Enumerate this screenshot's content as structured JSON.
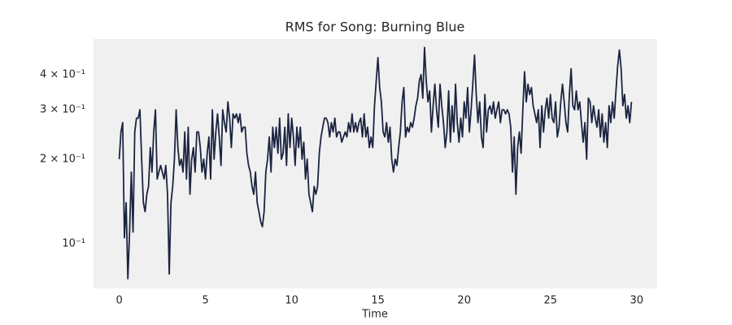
{
  "chart_data": {
    "type": "line",
    "title": "RMS for Song: Burning Blue",
    "x_label": "Time",
    "yscale": "log",
    "grid": false,
    "color": "#1b2440",
    "xlim": [
      -1.49,
      31.19
    ],
    "ylim": [
      0.0693,
      0.536
    ],
    "xticks": [
      0,
      5,
      10,
      15,
      20,
      25,
      30
    ],
    "yticks": [
      {
        "value": 0.1,
        "label": "10⁻¹"
      },
      {
        "value": 0.2,
        "label": "2 × 10⁻¹"
      },
      {
        "value": 0.3,
        "label": "3 × 10⁻¹"
      },
      {
        "value": 0.4,
        "label": "4 × 10⁻¹"
      }
    ],
    "x": [
      0,
      0.1,
      0.2,
      0.3,
      0.4,
      0.5,
      0.6,
      0.7,
      0.8,
      0.9,
      1,
      1.1,
      1.2,
      1.3,
      1.4,
      1.5,
      1.6,
      1.7,
      1.8,
      1.9,
      2,
      2.1,
      2.2,
      2.3,
      2.4,
      2.5,
      2.6,
      2.7,
      2.8,
      2.9,
      3,
      3.1,
      3.2,
      3.3,
      3.4,
      3.5,
      3.6,
      3.7,
      3.8,
      3.9,
      4,
      4.1,
      4.2,
      4.3,
      4.4,
      4.5,
      4.6,
      4.7,
      4.8,
      4.9,
      5,
      5.1,
      5.2,
      5.3,
      5.4,
      5.5,
      5.6,
      5.7,
      5.8,
      5.9,
      6,
      6.1,
      6.2,
      6.3,
      6.4,
      6.5,
      6.6,
      6.7,
      6.8,
      6.9,
      7,
      7.1,
      7.2,
      7.3,
      7.4,
      7.5,
      7.6,
      7.7,
      7.8,
      7.9,
      8,
      8.1,
      8.2,
      8.3,
      8.4,
      8.5,
      8.6,
      8.7,
      8.8,
      8.9,
      9,
      9.1,
      9.2,
      9.3,
      9.4,
      9.5,
      9.6,
      9.7,
      9.8,
      9.9,
      10,
      10.1,
      10.2,
      10.3,
      10.4,
      10.5,
      10.6,
      10.7,
      10.8,
      10.9,
      11,
      11.1,
      11.2,
      11.3,
      11.4,
      11.5,
      11.6,
      11.7,
      11.8,
      11.9,
      12,
      12.1,
      12.2,
      12.3,
      12.4,
      12.5,
      12.6,
      12.7,
      12.8,
      12.9,
      13,
      13.1,
      13.2,
      13.3,
      13.4,
      13.5,
      13.6,
      13.7,
      13.8,
      13.9,
      14,
      14.1,
      14.2,
      14.3,
      14.4,
      14.5,
      14.6,
      14.7,
      14.8,
      14.9,
      15,
      15.1,
      15.2,
      15.3,
      15.4,
      15.5,
      15.6,
      15.7,
      15.8,
      15.9,
      16,
      16.1,
      16.2,
      16.3,
      16.4,
      16.5,
      16.6,
      16.7,
      16.8,
      16.9,
      17,
      17.1,
      17.2,
      17.3,
      17.4,
      17.5,
      17.6,
      17.7,
      17.8,
      17.9,
      18,
      18.1,
      18.2,
      18.3,
      18.4,
      18.5,
      18.6,
      18.7,
      18.8,
      18.9,
      19,
      19.1,
      19.2,
      19.3,
      19.4,
      19.5,
      19.6,
      19.7,
      19.8,
      19.9,
      20,
      20.1,
      20.2,
      20.3,
      20.4,
      20.5,
      20.6,
      20.7,
      20.8,
      20.9,
      21,
      21.1,
      21.2,
      21.3,
      21.4,
      21.5,
      21.6,
      21.7,
      21.8,
      21.9,
      22,
      22.1,
      22.2,
      22.3,
      22.4,
      22.5,
      22.6,
      22.7,
      22.8,
      22.9,
      23,
      23.1,
      23.2,
      23.3,
      23.4,
      23.5,
      23.6,
      23.7,
      23.8,
      23.9,
      24,
      24.1,
      24.2,
      24.3,
      24.4,
      24.5,
      24.6,
      24.7,
      24.8,
      24.9,
      25,
      25.1,
      25.2,
      25.3,
      25.4,
      25.5,
      25.6,
      25.7,
      25.8,
      25.9,
      26,
      26.1,
      26.2,
      26.3,
      26.4,
      26.5,
      26.6,
      26.7,
      26.8,
      26.9,
      27,
      27.1,
      27.2,
      27.3,
      27.4,
      27.5,
      27.6,
      27.7,
      27.8,
      27.9,
      28,
      28.1,
      28.2,
      28.3,
      28.4,
      28.5,
      28.6,
      28.7,
      28.8,
      28.9,
      29,
      29.1,
      29.2,
      29.3,
      29.4,
      29.5,
      29.6,
      29.7
    ],
    "values": [
      0.2,
      0.25,
      0.27,
      0.105,
      0.14,
      0.075,
      0.11,
      0.18,
      0.11,
      0.25,
      0.28,
      0.28,
      0.3,
      0.2,
      0.14,
      0.13,
      0.15,
      0.16,
      0.22,
      0.18,
      0.25,
      0.3,
      0.17,
      0.18,
      0.19,
      0.18,
      0.17,
      0.19,
      0.15,
      0.078,
      0.14,
      0.16,
      0.2,
      0.3,
      0.22,
      0.19,
      0.2,
      0.18,
      0.25,
      0.17,
      0.26,
      0.15,
      0.2,
      0.22,
      0.18,
      0.25,
      0.25,
      0.22,
      0.18,
      0.2,
      0.17,
      0.21,
      0.24,
      0.17,
      0.3,
      0.2,
      0.25,
      0.29,
      0.24,
      0.19,
      0.3,
      0.27,
      0.25,
      0.32,
      0.28,
      0.22,
      0.29,
      0.28,
      0.29,
      0.27,
      0.29,
      0.25,
      0.26,
      0.26,
      0.21,
      0.19,
      0.18,
      0.16,
      0.15,
      0.18,
      0.14,
      0.13,
      0.12,
      0.115,
      0.13,
      0.18,
      0.2,
      0.24,
      0.18,
      0.26,
      0.22,
      0.26,
      0.21,
      0.28,
      0.2,
      0.21,
      0.26,
      0.19,
      0.29,
      0.22,
      0.28,
      0.24,
      0.19,
      0.26,
      0.22,
      0.26,
      0.2,
      0.23,
      0.17,
      0.2,
      0.15,
      0.14,
      0.13,
      0.16,
      0.15,
      0.16,
      0.21,
      0.24,
      0.26,
      0.28,
      0.28,
      0.27,
      0.24,
      0.27,
      0.25,
      0.28,
      0.24,
      0.25,
      0.25,
      0.23,
      0.24,
      0.25,
      0.24,
      0.27,
      0.25,
      0.29,
      0.25,
      0.27,
      0.25,
      0.27,
      0.28,
      0.24,
      0.29,
      0.24,
      0.26,
      0.22,
      0.24,
      0.22,
      0.31,
      0.38,
      0.46,
      0.36,
      0.32,
      0.25,
      0.24,
      0.27,
      0.23,
      0.26,
      0.2,
      0.18,
      0.2,
      0.19,
      0.22,
      0.25,
      0.32,
      0.36,
      0.24,
      0.26,
      0.25,
      0.27,
      0.26,
      0.28,
      0.31,
      0.33,
      0.38,
      0.4,
      0.33,
      0.5,
      0.38,
      0.32,
      0.35,
      0.25,
      0.31,
      0.37,
      0.3,
      0.26,
      0.37,
      0.31,
      0.27,
      0.22,
      0.25,
      0.35,
      0.23,
      0.31,
      0.25,
      0.37,
      0.27,
      0.23,
      0.28,
      0.24,
      0.32,
      0.28,
      0.36,
      0.25,
      0.3,
      0.37,
      0.47,
      0.34,
      0.27,
      0.32,
      0.24,
      0.22,
      0.34,
      0.25,
      0.3,
      0.31,
      0.29,
      0.32,
      0.28,
      0.3,
      0.32,
      0.27,
      0.3,
      0.3,
      0.29,
      0.3,
      0.29,
      0.26,
      0.18,
      0.24,
      0.15,
      0.22,
      0.25,
      0.21,
      0.3,
      0.41,
      0.32,
      0.37,
      0.34,
      0.36,
      0.31,
      0.29,
      0.27,
      0.3,
      0.22,
      0.31,
      0.25,
      0.3,
      0.33,
      0.28,
      0.34,
      0.28,
      0.27,
      0.32,
      0.24,
      0.26,
      0.32,
      0.37,
      0.32,
      0.27,
      0.25,
      0.34,
      0.42,
      0.31,
      0.3,
      0.35,
      0.3,
      0.32,
      0.27,
      0.23,
      0.27,
      0.2,
      0.33,
      0.32,
      0.27,
      0.31,
      0.28,
      0.26,
      0.3,
      0.24,
      0.29,
      0.23,
      0.27,
      0.22,
      0.31,
      0.27,
      0.32,
      0.28,
      0.35,
      0.43,
      0.49,
      0.42,
      0.31,
      0.34,
      0.28,
      0.31,
      0.27,
      0.32
    ]
  }
}
